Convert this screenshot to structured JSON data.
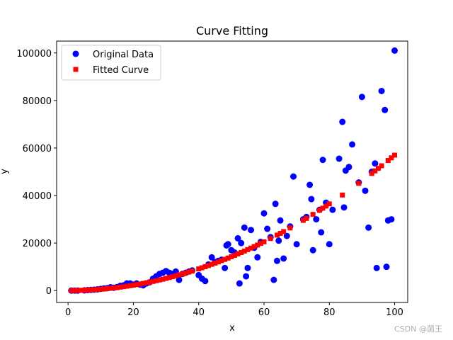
{
  "chart_data": {
    "type": "scatter",
    "title": "Curve Fitting",
    "xlabel": "x",
    "ylabel": "y",
    "xlim": [
      -3.5,
      104
    ],
    "ylim": [
      -5000,
      105000
    ],
    "xticks": [
      0,
      20,
      40,
      60,
      80,
      100
    ],
    "yticks": [
      0,
      20000,
      40000,
      60000,
      80000,
      100000
    ],
    "xtick_labels": [
      "0",
      "20",
      "40",
      "60",
      "80",
      "100"
    ],
    "ytick_labels": [
      "0",
      "20000",
      "40000",
      "60000",
      "80000",
      "100000"
    ],
    "legend_position": "top-left",
    "series": [
      {
        "name": "Original Data",
        "marker": "circle",
        "color": "#0000ff",
        "points": [
          [
            1,
            0
          ],
          [
            2,
            0
          ],
          [
            3,
            0
          ],
          [
            5,
            100
          ],
          [
            6,
            200
          ],
          [
            7,
            300
          ],
          [
            8,
            400
          ],
          [
            9,
            500
          ],
          [
            10,
            700
          ],
          [
            11,
            900
          ],
          [
            12,
            1000
          ],
          [
            13,
            1400
          ],
          [
            14,
            1200
          ],
          [
            15,
            1500
          ],
          [
            16,
            2000
          ],
          [
            17,
            2200
          ],
          [
            18,
            3000
          ],
          [
            19,
            3000
          ],
          [
            20,
            2500
          ],
          [
            21,
            3000
          ],
          [
            22,
            2500
          ],
          [
            23,
            2200
          ],
          [
            24,
            3000
          ],
          [
            25,
            3500
          ],
          [
            26,
            5000
          ],
          [
            27,
            6000
          ],
          [
            28,
            7000
          ],
          [
            29,
            7500
          ],
          [
            30,
            8200
          ],
          [
            31,
            7500
          ],
          [
            32,
            7000
          ],
          [
            33,
            8000
          ],
          [
            34,
            4500
          ],
          [
            35,
            7000
          ],
          [
            36,
            7500
          ],
          [
            37,
            8000
          ],
          [
            38,
            8500
          ],
          [
            40,
            6500
          ],
          [
            41,
            5000
          ],
          [
            42,
            4000
          ],
          [
            43,
            11000
          ],
          [
            44,
            14000
          ],
          [
            45,
            12000
          ],
          [
            46,
            12500
          ],
          [
            47,
            13000
          ],
          [
            48,
            9500
          ],
          [
            48.5,
            19000
          ],
          [
            49,
            19500
          ],
          [
            50,
            17000
          ],
          [
            51,
            16000
          ],
          [
            52,
            22000
          ],
          [
            52.5,
            3000
          ],
          [
            53,
            20000
          ],
          [
            54,
            26500
          ],
          [
            54.5,
            6000
          ],
          [
            55,
            9500
          ],
          [
            56,
            25500
          ],
          [
            57,
            18000
          ],
          [
            58,
            14000
          ],
          [
            59,
            20500
          ],
          [
            60,
            32500
          ],
          [
            61,
            26000
          ],
          [
            62,
            22500
          ],
          [
            63,
            4500
          ],
          [
            63.5,
            36500
          ],
          [
            64,
            12500
          ],
          [
            64.5,
            21000
          ],
          [
            65,
            29500
          ],
          [
            66,
            13500
          ],
          [
            67,
            23000
          ],
          [
            68,
            27000
          ],
          [
            69,
            48000
          ],
          [
            70,
            19500
          ],
          [
            72,
            30000
          ],
          [
            73,
            31000
          ],
          [
            74,
            44500
          ],
          [
            74.5,
            38500
          ],
          [
            75,
            17000
          ],
          [
            76,
            30000
          ],
          [
            77,
            34000
          ],
          [
            77.5,
            24500
          ],
          [
            78,
            55000
          ],
          [
            79,
            37000
          ],
          [
            80,
            19500
          ],
          [
            81,
            34000
          ],
          [
            83,
            55500
          ],
          [
            84,
            71000
          ],
          [
            84.5,
            35000
          ],
          [
            85,
            50500
          ],
          [
            86,
            52000
          ],
          [
            87,
            61500
          ],
          [
            89,
            45500
          ],
          [
            90,
            81500
          ],
          [
            91,
            42000
          ],
          [
            92,
            26500
          ],
          [
            93,
            50000
          ],
          [
            94,
            53500
          ],
          [
            94.5,
            9500
          ],
          [
            96,
            84000
          ],
          [
            97,
            76000
          ],
          [
            97.5,
            10000
          ],
          [
            98,
            29500
          ],
          [
            99,
            30000
          ],
          [
            100,
            101000
          ]
        ]
      },
      {
        "name": "Fitted Curve",
        "marker": "square",
        "color": "#ff0000",
        "coefficient": 5.7,
        "exponent": 2,
        "x": [
          1,
          2,
          3,
          4,
          5,
          6,
          7,
          8,
          9,
          10,
          11,
          12,
          13,
          14,
          15,
          16,
          17,
          18,
          19,
          20,
          21,
          22,
          23,
          24,
          25,
          26,
          27,
          28,
          29,
          30,
          31,
          32,
          33,
          34,
          35,
          36,
          37,
          38,
          40,
          41,
          42,
          43,
          44,
          45,
          46,
          47,
          48,
          49,
          50,
          51,
          52,
          53,
          54,
          55,
          56,
          57,
          58,
          59,
          60,
          62,
          64,
          65,
          66,
          68,
          72,
          73,
          75,
          77,
          78,
          79,
          80,
          84,
          89,
          93,
          94,
          95,
          96,
          98,
          99,
          100
        ]
      }
    ]
  },
  "watermark": "CSDN @菌王"
}
